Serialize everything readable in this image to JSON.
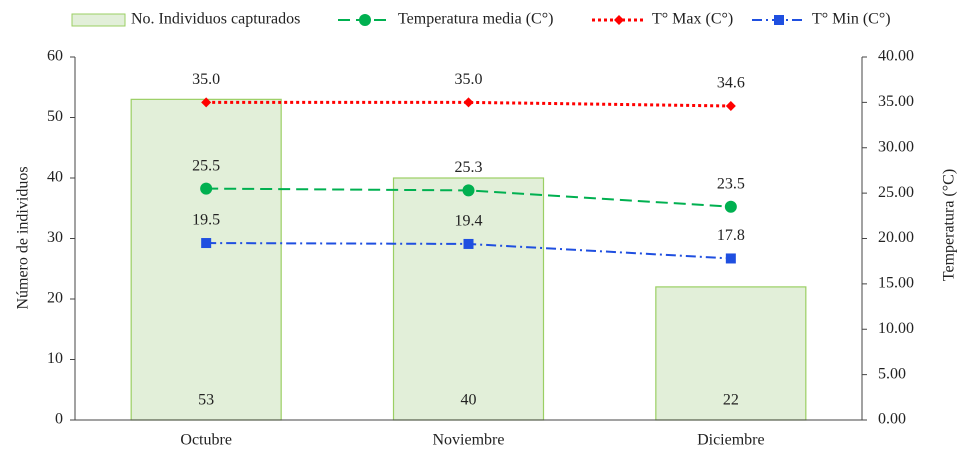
{
  "chart_data": {
    "type": "bar",
    "categories": [
      "Octubre",
      "Noviembre",
      "Diciembre"
    ],
    "y_label": "Número de individuos",
    "y2_label": "Temperatura  (°C)",
    "ylim": [
      0,
      60
    ],
    "yticks": [
      0,
      10,
      20,
      30,
      40,
      50,
      60
    ],
    "y2lim": [
      0,
      40
    ],
    "y2ticks": [
      {
        "value": 0,
        "label": "0.00"
      },
      {
        "value": 5,
        "label": "5.00"
      },
      {
        "value": 10,
        "label": "10.00"
      },
      {
        "value": 15,
        "label": "15.00"
      },
      {
        "value": 20,
        "label": "20.00"
      },
      {
        "value": 25,
        "label": "25.00"
      },
      {
        "value": 30,
        "label": "30.00"
      },
      {
        "value": 35,
        "label": "35.00"
      },
      {
        "value": 40,
        "label": "40.00"
      }
    ],
    "series": [
      {
        "name": "No. Individuos capturados",
        "type": "bar",
        "color": "#e2efd9",
        "values": [
          53,
          40,
          22
        ]
      },
      {
        "name": "Temperatura media (C°)",
        "type": "line",
        "axis": "y2",
        "color": "#00b050",
        "marker": "circle",
        "values": [
          25.5,
          25.3,
          23.5
        ],
        "value_labels": [
          "25.5",
          "25.3",
          "23.5"
        ]
      },
      {
        "name": "T° Max (C°)",
        "type": "line",
        "axis": "y2",
        "color": "#ff0000",
        "marker": "diamond",
        "values": [
          35.0,
          35.0,
          34.6
        ],
        "value_labels": [
          "35.0",
          "35.0",
          "34.6"
        ]
      },
      {
        "name": "T° Min (C°)",
        "type": "line",
        "axis": "y2",
        "color": "#1f4fe0",
        "marker": "square",
        "values": [
          19.5,
          19.4,
          17.8
        ],
        "value_labels": [
          "19.5",
          "19.4",
          "17.8"
        ]
      }
    ]
  }
}
